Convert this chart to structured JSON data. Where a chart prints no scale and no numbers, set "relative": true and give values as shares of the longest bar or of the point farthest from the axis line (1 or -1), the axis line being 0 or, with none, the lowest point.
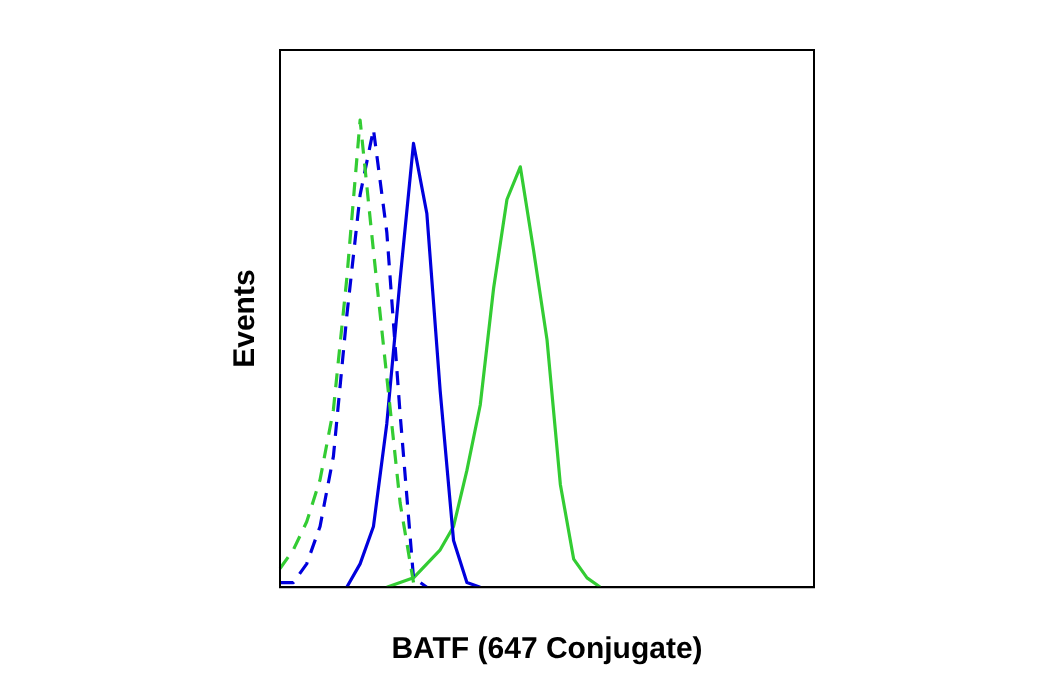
{
  "chart_data": {
    "type": "line",
    "relative": true,
    "xlabel": "BATF (647 Conjugate)",
    "ylabel": "Events",
    "legend": false,
    "grid": false,
    "marker": "none",
    "categories": [
      null,
      null,
      null,
      null,
      null,
      null,
      null,
      null,
      null,
      null,
      null,
      null,
      null,
      null,
      null,
      null,
      null,
      null,
      null,
      null,
      null,
      null,
      null,
      null,
      null,
      null,
      null,
      null,
      null,
      null,
      null,
      null,
      null,
      null,
      null,
      null,
      null,
      null,
      null,
      null,
      null
    ],
    "series": [
      {
        "color": "#33cc33",
        "line_style": "dashed",
        "values": [
          0.04,
          0.08,
          0.14,
          0.23,
          0.38,
          0.66,
          1.0,
          0.72,
          0.45,
          0.18,
          0.01,
          null,
          null,
          null,
          null,
          null,
          null,
          null,
          null,
          null,
          null,
          null,
          null,
          null,
          null,
          null,
          null,
          null,
          null,
          null,
          null,
          null,
          null,
          null,
          null,
          null,
          null,
          null,
          null,
          null,
          null
        ]
      },
      {
        "color": "#0000dd",
        "line_style": "dashed",
        "values": [
          0.01,
          0.01,
          0.05,
          0.13,
          0.28,
          0.58,
          0.84,
          0.98,
          0.76,
          0.37,
          0.02,
          0,
          null,
          null,
          null,
          null,
          null,
          null,
          null,
          null,
          null,
          null,
          null,
          null,
          null,
          null,
          null,
          null,
          null,
          null,
          null,
          null,
          null,
          null,
          null,
          null,
          null,
          null,
          null,
          null,
          null
        ]
      },
      {
        "color": "#0000dd",
        "line_style": "solid",
        "values": [
          null,
          null,
          null,
          null,
          null,
          0,
          0.05,
          0.13,
          0.35,
          0.66,
          0.95,
          0.8,
          0.42,
          0.1,
          0.01,
          0,
          null,
          null,
          null,
          null,
          null,
          null,
          null,
          null,
          null,
          null,
          null,
          null,
          null,
          null,
          null,
          null,
          null,
          null,
          null,
          null,
          null,
          null,
          null,
          null,
          null
        ]
      },
      {
        "color": "#33cc33",
        "line_style": "solid",
        "values": [
          null,
          null,
          null,
          null,
          null,
          null,
          null,
          null,
          0,
          0.01,
          0.02,
          0.05,
          0.08,
          0.13,
          0.25,
          0.39,
          0.64,
          0.83,
          0.9,
          0.72,
          0.53,
          0.22,
          0.06,
          0.02,
          0,
          null,
          null,
          null,
          null,
          null,
          null,
          null,
          null,
          null,
          null,
          null,
          null,
          null,
          null,
          null,
          null
        ]
      }
    ]
  }
}
